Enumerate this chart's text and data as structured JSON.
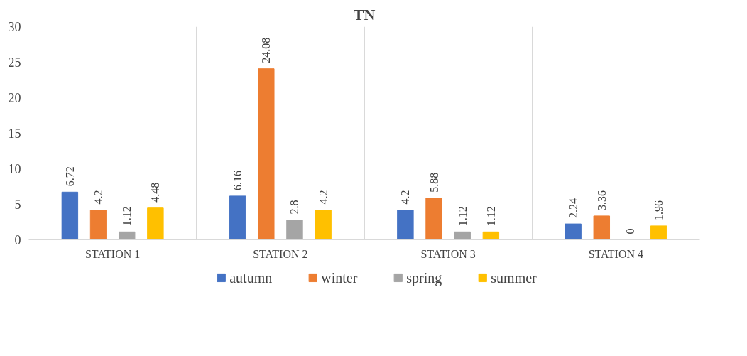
{
  "chart_data": {
    "type": "bar",
    "title": "TN",
    "categories": [
      "STATION 1",
      "STATION 2",
      "STATION 3",
      "STATION 4"
    ],
    "series": [
      {
        "name": "autumn",
        "color": "#4472c4",
        "values": [
          6.72,
          6.16,
          4.2,
          2.24
        ]
      },
      {
        "name": "winter",
        "color": "#ed7d31",
        "values": [
          4.2,
          24.08,
          5.88,
          3.36
        ]
      },
      {
        "name": "spring",
        "color": "#a5a5a5",
        "values": [
          1.12,
          2.8,
          1.12,
          0
        ]
      },
      {
        "name": "summer",
        "color": "#ffc000",
        "values": [
          4.48,
          4.2,
          1.12,
          1.96
        ]
      }
    ],
    "ylim": [
      0,
      30
    ],
    "yticks": [
      0,
      5,
      10,
      15,
      20,
      25,
      30
    ],
    "grid": "x",
    "legend": "bottom",
    "data_labels": true
  }
}
